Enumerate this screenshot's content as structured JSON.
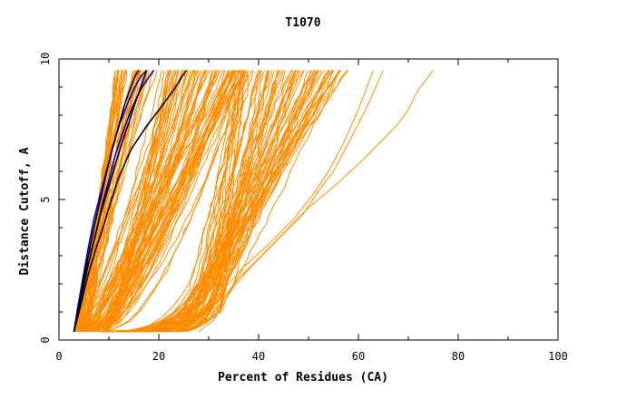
{
  "chart_data": {
    "type": "line",
    "title": "T1070",
    "xlabel": "Percent of Residues (CA)",
    "ylabel": "Distance Cutoff, A",
    "xlim": [
      0,
      100
    ],
    "ylim": [
      0,
      10
    ],
    "xticks": [
      "0",
      "20",
      "40",
      "60",
      "80",
      "100"
    ],
    "yticks": [
      "0",
      "5",
      "10"
    ],
    "grid": false,
    "colors": {
      "other_models": "#ff8c00",
      "highlight_blue": "#0000cc",
      "highlight_black": "#000000"
    },
    "series_groups": [
      {
        "group": "steep",
        "color": "#ff8c00",
        "count": 35,
        "start_x": [
          3,
          6
        ],
        "top_x": [
          11,
          20
        ],
        "curvature": [
          0.9,
          1.2
        ],
        "y_top": 9.6,
        "y_bottom": 0.3
      },
      {
        "group": "middle",
        "color": "#ff8c00",
        "count": 70,
        "start_x": [
          3,
          10
        ],
        "top_x": [
          20,
          38
        ],
        "curvature": [
          0.55,
          1.0
        ],
        "y_top": 9.6,
        "y_bottom": 0.3
      },
      {
        "group": "band",
        "color": "#ff8c00",
        "count": 70,
        "start_x": [
          8,
          24
        ],
        "bend_y": [
          0.9,
          2.3
        ],
        "bend_x": [
          26,
          33
        ],
        "top_x": [
          35,
          58
        ],
        "curvature": [
          0.85,
          1.1
        ],
        "y_top": 9.6,
        "y_bottom": 0.3
      }
    ],
    "series": [
      {
        "name": "",
        "color": "#ff8c00",
        "x": [
          25,
          28,
          31,
          33,
          36,
          40,
          45,
          50,
          56,
          62,
          68,
          70,
          72,
          75
        ],
        "y": [
          0.3,
          0.6,
          0.8,
          1.5,
          2.2,
          2.9,
          3.8,
          4.7,
          5.6,
          6.6,
          7.7,
          8.2,
          8.9,
          9.6
        ]
      },
      {
        "name": "",
        "color": "#ff8c00",
        "x": [
          28,
          31,
          32,
          35,
          39,
          44,
          49,
          52,
          55,
          58,
          62,
          65
        ],
        "y": [
          0.3,
          0.7,
          1.0,
          1.9,
          2.7,
          3.6,
          4.5,
          5.3,
          6.0,
          7.0,
          8.4,
          9.6
        ]
      },
      {
        "name": "",
        "color": "#ff8c00",
        "x": [
          26,
          30,
          33,
          37,
          42,
          47,
          51,
          54,
          57,
          60,
          63
        ],
        "y": [
          0.3,
          0.9,
          1.8,
          2.6,
          3.4,
          4.3,
          5.2,
          6.0,
          7.0,
          8.2,
          9.6
        ]
      },
      {
        "name": "",
        "color": "#0000cc",
        "x": [
          3.0,
          4.0,
          5.0,
          6.3,
          7.5,
          8.8,
          10.0,
          11.3,
          12.8,
          14.5,
          16.3,
          17.8,
          19.0
        ],
        "y": [
          0.3,
          1.3,
          2.2,
          3.0,
          3.9,
          4.9,
          5.7,
          6.6,
          7.4,
          8.2,
          8.9,
          9.3,
          9.6
        ]
      },
      {
        "name": "",
        "color": "#0000cc",
        "x": [
          3.0,
          3.8,
          4.8,
          5.8,
          7.0,
          8.3,
          9.5,
          10.8,
          12.2,
          13.7,
          15.2,
          16.5,
          17.6
        ],
        "y": [
          0.3,
          1.2,
          2.2,
          3.2,
          4.3,
          5.2,
          6.0,
          6.9,
          7.7,
          8.4,
          9.0,
          9.4,
          9.6
        ]
      },
      {
        "name": "",
        "color": "#000000",
        "x": [
          3.0,
          4.0,
          5.0,
          6.0,
          7.0,
          8.3,
          9.3,
          10.5,
          11.8,
          13.0,
          14.2,
          15.3,
          16.0
        ],
        "y": [
          0.3,
          1.2,
          2.2,
          3.1,
          4.0,
          5.0,
          5.8,
          6.7,
          7.5,
          8.3,
          8.9,
          9.4,
          9.6
        ]
      },
      {
        "name": "",
        "color": "#000000",
        "x": [
          3.0,
          4.2,
          5.5,
          6.8,
          8.2,
          9.7,
          11.2,
          12.8,
          14.3,
          15.6,
          16.8,
          17.5
        ],
        "y": [
          0.3,
          1.3,
          2.4,
          3.4,
          4.4,
          5.3,
          6.2,
          7.1,
          7.9,
          8.6,
          9.2,
          9.6
        ]
      },
      {
        "name": "",
        "color": "#000000",
        "x": [
          3.0,
          4.3,
          5.8,
          7.3,
          9.0,
          10.5,
          12.0,
          14.5,
          17.5,
          20.5,
          23.0,
          25.5
        ],
        "y": [
          0.3,
          1.2,
          2.3,
          3.2,
          4.1,
          5.0,
          5.8,
          6.8,
          7.6,
          8.3,
          8.9,
          9.6
        ]
      }
    ]
  }
}
